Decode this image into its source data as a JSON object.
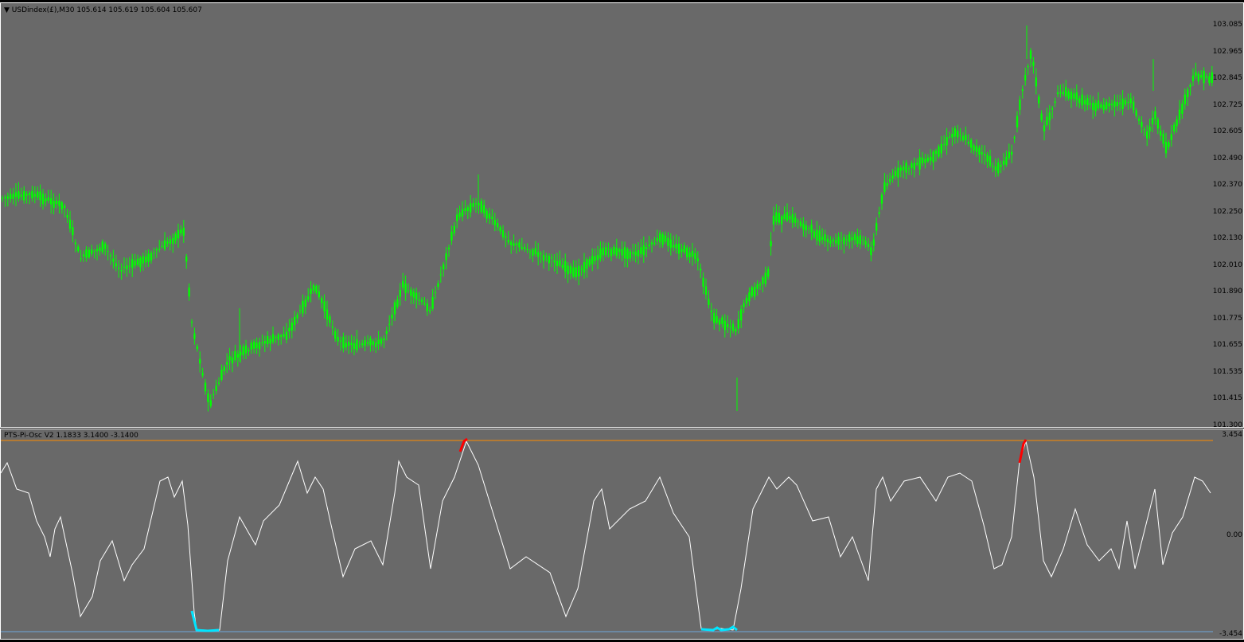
{
  "main_chart": {
    "title": "USDindex(£),M30  105.614 105.619 105.604 105.607",
    "candle_color": "#00ff00",
    "background": "#696969",
    "price_axis": [
      "103.085",
      "102.965",
      "102.845",
      "102.725",
      "102.605",
      "102.490",
      "102.370",
      "102.250",
      "102.130",
      "102.010",
      "101.890",
      "101.775",
      "101.655",
      "101.535",
      "101.415",
      "101.300"
    ]
  },
  "oscillator": {
    "title": "PTS-Pi-Osc V2 1.1833 3.1400 -3.1400",
    "line_color": "#ffffff",
    "upper_level_color": "#ff8c00",
    "lower_level_color": "#6fa8dc",
    "overbought_color": "#ff0000",
    "oversold_color": "#00e5ff",
    "axis": [
      "3.454",
      "0.00",
      "-3.454"
    ]
  }
}
